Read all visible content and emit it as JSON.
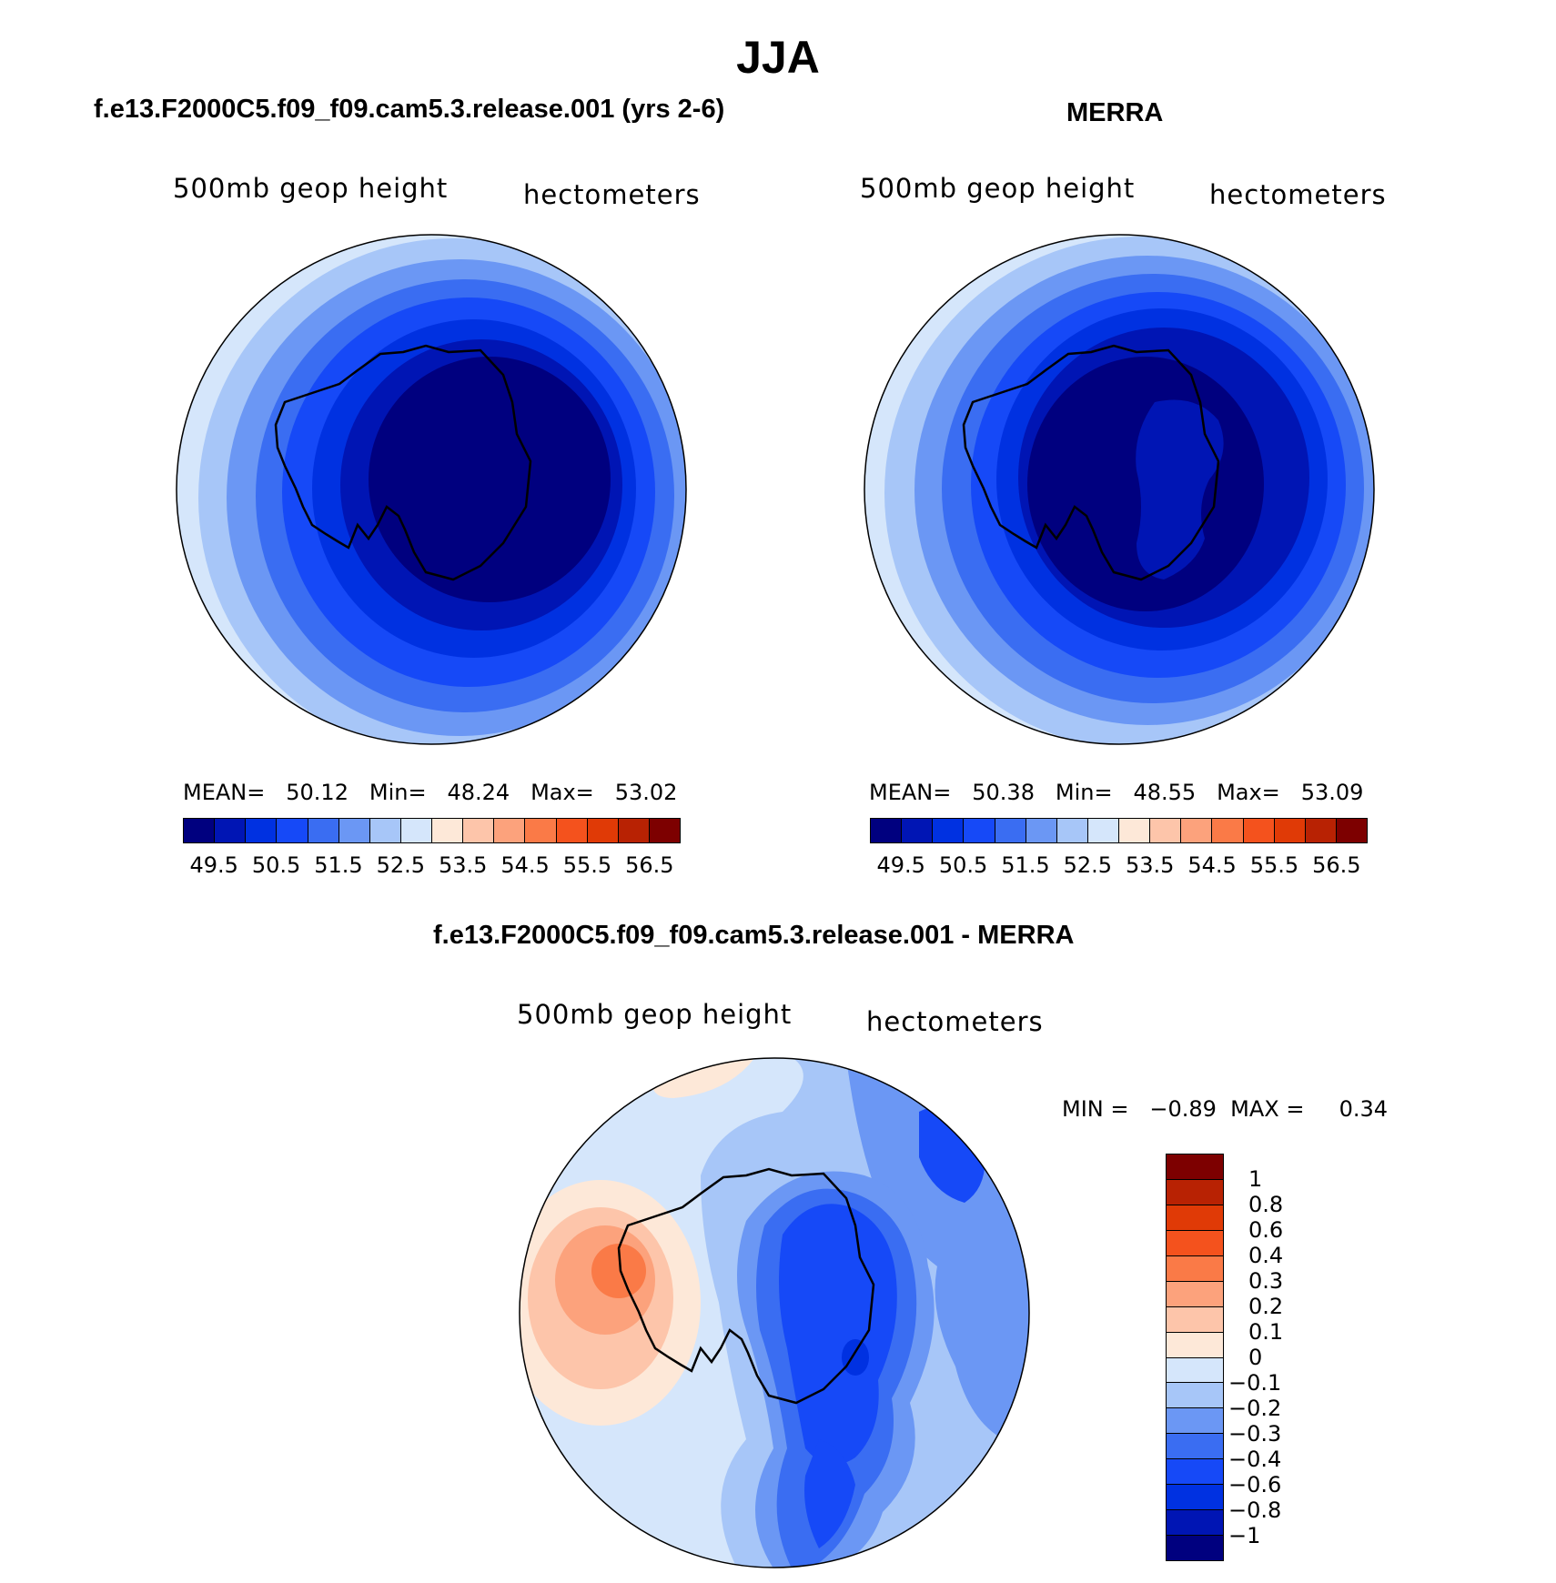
{
  "figure": {
    "title": "JJA",
    "panel1_title": "f.e13.F2000C5.f09_f09.cam5.3.release.001 (yrs 2-6)",
    "panel2_title": "MERRA",
    "panel3_title": "f.e13.F2000C5.f09_f09.cam5.3.release.001 - MERRA"
  },
  "panels": [
    {
      "variable": "500mb  geop  height",
      "units": "hectometers",
      "mean_label": "MEAN=",
      "mean": "50.12",
      "min_label": "Min=",
      "min": "48.24",
      "max_label": "Max=",
      "max": "53.02"
    },
    {
      "variable": "500mb  geop  height",
      "units": "hectometers",
      "mean_label": "MEAN=",
      "mean": "50.38",
      "min_label": "Min=",
      "min": "48.55",
      "max_label": "Max=",
      "max": "53.09"
    },
    {
      "variable": "500mb  geop  height",
      "units": "hectometers",
      "minmax": "MIN =   −0.89  MAX =     0.34"
    }
  ],
  "colorbar_abs": {
    "colors": [
      "#00007f",
      "#0015b4",
      "#0031e1",
      "#1649f7",
      "#3a6df2",
      "#6b97f4",
      "#a7c6f8",
      "#d5e6fb",
      "#fde8d8",
      "#fdc5aa",
      "#fca27c",
      "#fa7a47",
      "#f4521d",
      "#e03a06",
      "#b82203",
      "#7d0000"
    ],
    "tick_labels": [
      "49.5",
      "50.5",
      "51.5",
      "52.5",
      "53.5",
      "54.5",
      "55.5",
      "56.5"
    ]
  },
  "colorbar_diff": {
    "colors": [
      "#7d0000",
      "#b82203",
      "#e03a06",
      "#f4521d",
      "#fa7a47",
      "#fca27c",
      "#fdc5aa",
      "#fde8d8",
      "#d5e6fb",
      "#a7c6f8",
      "#6b97f4",
      "#3a6df2",
      "#1649f7",
      "#0031e1",
      "#0015b4",
      "#00007f"
    ],
    "tick_labels": [
      "1",
      "0.8",
      "0.6",
      "0.4",
      "0.3",
      "0.2",
      "0.1",
      "0",
      "−0.1",
      "−0.2",
      "−0.3",
      "−0.4",
      "−0.6",
      "−0.8",
      "−1"
    ]
  }
}
